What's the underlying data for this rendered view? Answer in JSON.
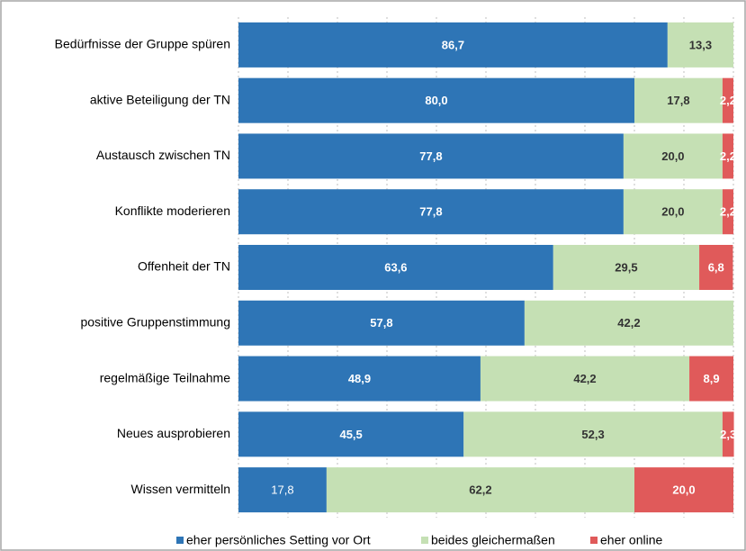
{
  "chart_data": {
    "type": "stacked_bar_horizontal",
    "categories": [
      "Bedürfnisse der Gruppe spüren",
      "aktive Beteiligung der TN",
      "Austausch zwischen TN",
      "Konflikte moderieren",
      "Offenheit der TN",
      "positive Gruppenstimmung",
      "regelmäßige Teilnahme",
      "Neues ausprobieren",
      "Wissen vermitteln"
    ],
    "series": [
      {
        "name": "eher persönliches Setting vor Ort",
        "color": "#2e75b6",
        "values": [
          86.7,
          80.0,
          77.8,
          77.8,
          63.6,
          57.8,
          48.9,
          45.5,
          17.8
        ],
        "value_labels": [
          "86,7",
          "80,0",
          "77,8",
          "77,8",
          "63,6",
          "57,8",
          "48,9",
          "45,5",
          "17,8"
        ]
      },
      {
        "name": "beides gleichermaßen",
        "color": "#c5e0b4",
        "values": [
          13.3,
          17.8,
          20.0,
          20.0,
          29.5,
          42.2,
          42.2,
          52.3,
          62.2
        ],
        "value_labels": [
          "13,3",
          "17,8",
          "20,0",
          "20,0",
          "29,5",
          "42,2",
          "42,2",
          "52,3",
          "62,2"
        ]
      },
      {
        "name": "eher online",
        "color": "#e05a5a",
        "values": [
          null,
          2.2,
          2.2,
          2.2,
          6.8,
          null,
          8.9,
          2.3,
          20.0
        ],
        "value_labels": [
          null,
          "2,2",
          "2,2",
          "2,2",
          "6,8",
          null,
          "8,9",
          "2,3",
          "20,0"
        ]
      }
    ],
    "xlim": [
      0,
      100
    ],
    "xticks": [
      0,
      10,
      20,
      30,
      40,
      50,
      60,
      70,
      80,
      90,
      100
    ],
    "grid": true,
    "legend": "bottom"
  }
}
